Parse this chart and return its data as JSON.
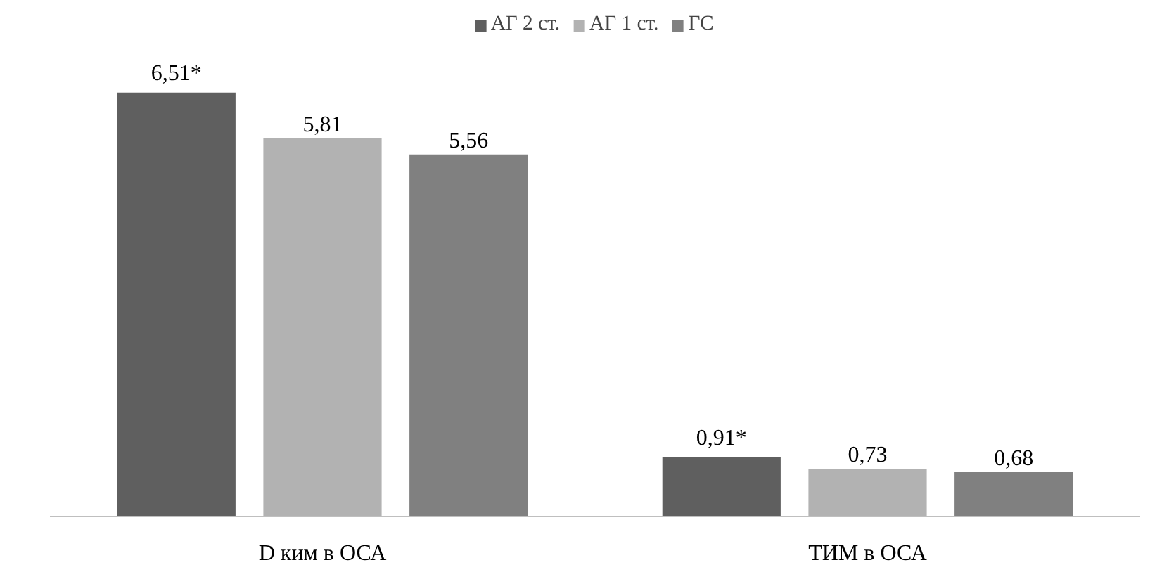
{
  "chart_data": {
    "type": "bar",
    "categories": [
      "D ким в ОСА",
      "ТИМ в ОСА"
    ],
    "series": [
      {
        "name": "АГ 2 ст.",
        "color": "#5f5f5f",
        "values": [
          6.51,
          0.91
        ],
        "value_labels": [
          "6,51*",
          "0,91*"
        ]
      },
      {
        "name": "АГ 1 ст.",
        "color": "#b2b2b2",
        "values": [
          5.81,
          0.73
        ],
        "value_labels": [
          "5,81",
          "0,73"
        ]
      },
      {
        "name": "ГС",
        "color": "#808080",
        "values": [
          5.56,
          0.68
        ],
        "value_labels": [
          "5,56",
          "0,68"
        ]
      }
    ],
    "legend": "top"
  }
}
